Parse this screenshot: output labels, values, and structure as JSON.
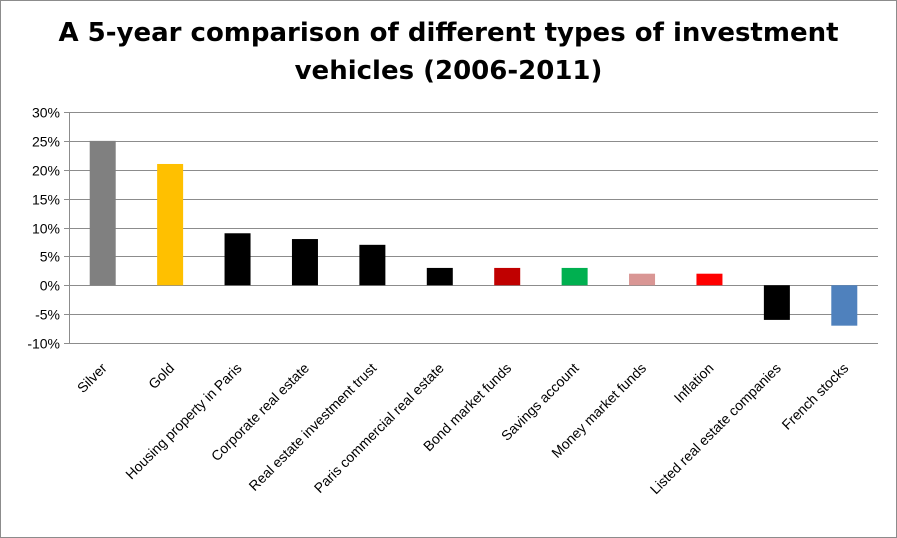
{
  "chart_data": {
    "type": "bar",
    "title_lines": [
      "A 5-year comparison of different types of investment",
      "vehicles (2006-2011)"
    ],
    "xlabel": "",
    "ylabel": "",
    "ylim": [
      -10,
      30
    ],
    "ytick_step": 5,
    "ytick_suffix": "%",
    "grid": true,
    "legend": "none",
    "categories": [
      "Silver",
      "Gold",
      "Housing property in Paris",
      "Corporate real estate",
      "Real estate investment trust",
      "Paris commercial real estate",
      "Bond market funds",
      "Savings account",
      "Money market funds",
      "Inflation",
      "Listed real estate companies",
      "French stocks"
    ],
    "values": [
      25,
      21,
      9,
      8,
      7,
      3,
      3,
      3,
      2,
      2,
      -6,
      -7
    ],
    "colors": [
      "#808080",
      "#FFC000",
      "#000000",
      "#000000",
      "#000000",
      "#000000",
      "#C00000",
      "#00B050",
      "#D99694",
      "#FF0000",
      "#000000",
      "#4F81BD"
    ]
  }
}
